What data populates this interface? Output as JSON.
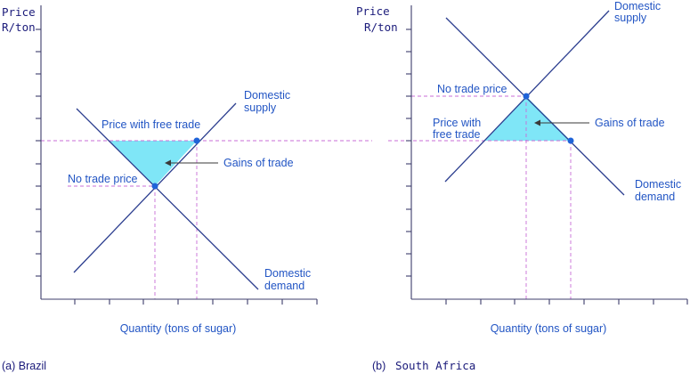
{
  "panels": [
    {
      "caption": "(a) Brazil",
      "y_axis": [
        "Price",
        "R/ton"
      ],
      "x_label": "Quantity (tons of sugar)",
      "supply_label": [
        "Domestic",
        "supply"
      ],
      "demand_label": [
        "Domestic",
        "demand"
      ],
      "free_trade_label": [
        "Price with free trade"
      ],
      "no_trade_label": "No trade price",
      "gains_label": "Gains of trade"
    },
    {
      "caption": "(b)",
      "caption_country": "South Africa",
      "y_axis": [
        "Price",
        "R/ton"
      ],
      "x_label": "Quantity (tons of sugar)",
      "supply_label": [
        "Domestic",
        "supply"
      ],
      "demand_label": [
        "Domestic",
        "demand"
      ],
      "free_trade_label": [
        "Price with",
        "free trade"
      ],
      "no_trade_label": "No trade price",
      "gains_label": "Gains of trade"
    }
  ],
  "colors": {
    "curve": "#2c3e8f",
    "guide": "#c86dd7",
    "gains_fill": "#7fe6f7",
    "label": "#2255c4"
  }
}
